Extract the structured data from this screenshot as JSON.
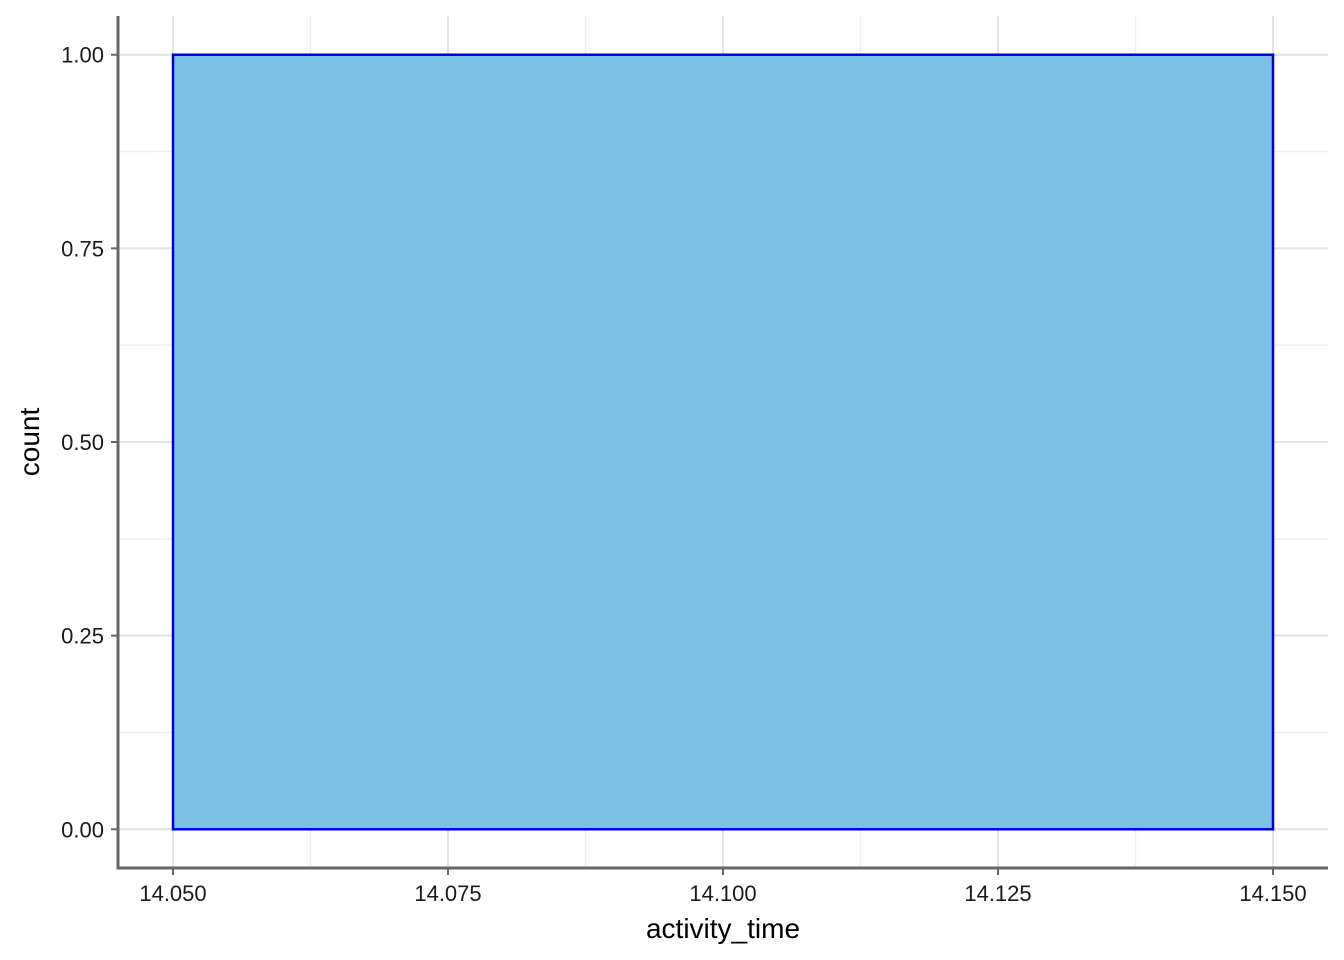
{
  "chart_data": {
    "type": "bar",
    "title": "",
    "xlabel": "activity_time",
    "ylabel": "count",
    "xlim": [
      14.045,
      14.155
    ],
    "ylim": [
      -0.05,
      1.05
    ],
    "x_ticks": [
      14.05,
      14.075,
      14.1,
      14.125,
      14.15
    ],
    "x_tick_labels": [
      "14.050",
      "14.075",
      "14.100",
      "14.125",
      "14.150"
    ],
    "y_ticks": [
      0,
      0.25,
      0.5,
      0.75,
      1.0
    ],
    "y_tick_labels": [
      "0.00",
      "0.25",
      "0.50",
      "0.75",
      "1.00"
    ],
    "grid": true,
    "bins": [
      {
        "x_start": 14.05,
        "x_end": 14.15,
        "count": 1
      }
    ],
    "colors": {
      "bar_fill": "#7AC1E4",
      "bar_outline": "#0000E0",
      "grid": "#E3E3E3",
      "axis": "#666666"
    }
  }
}
